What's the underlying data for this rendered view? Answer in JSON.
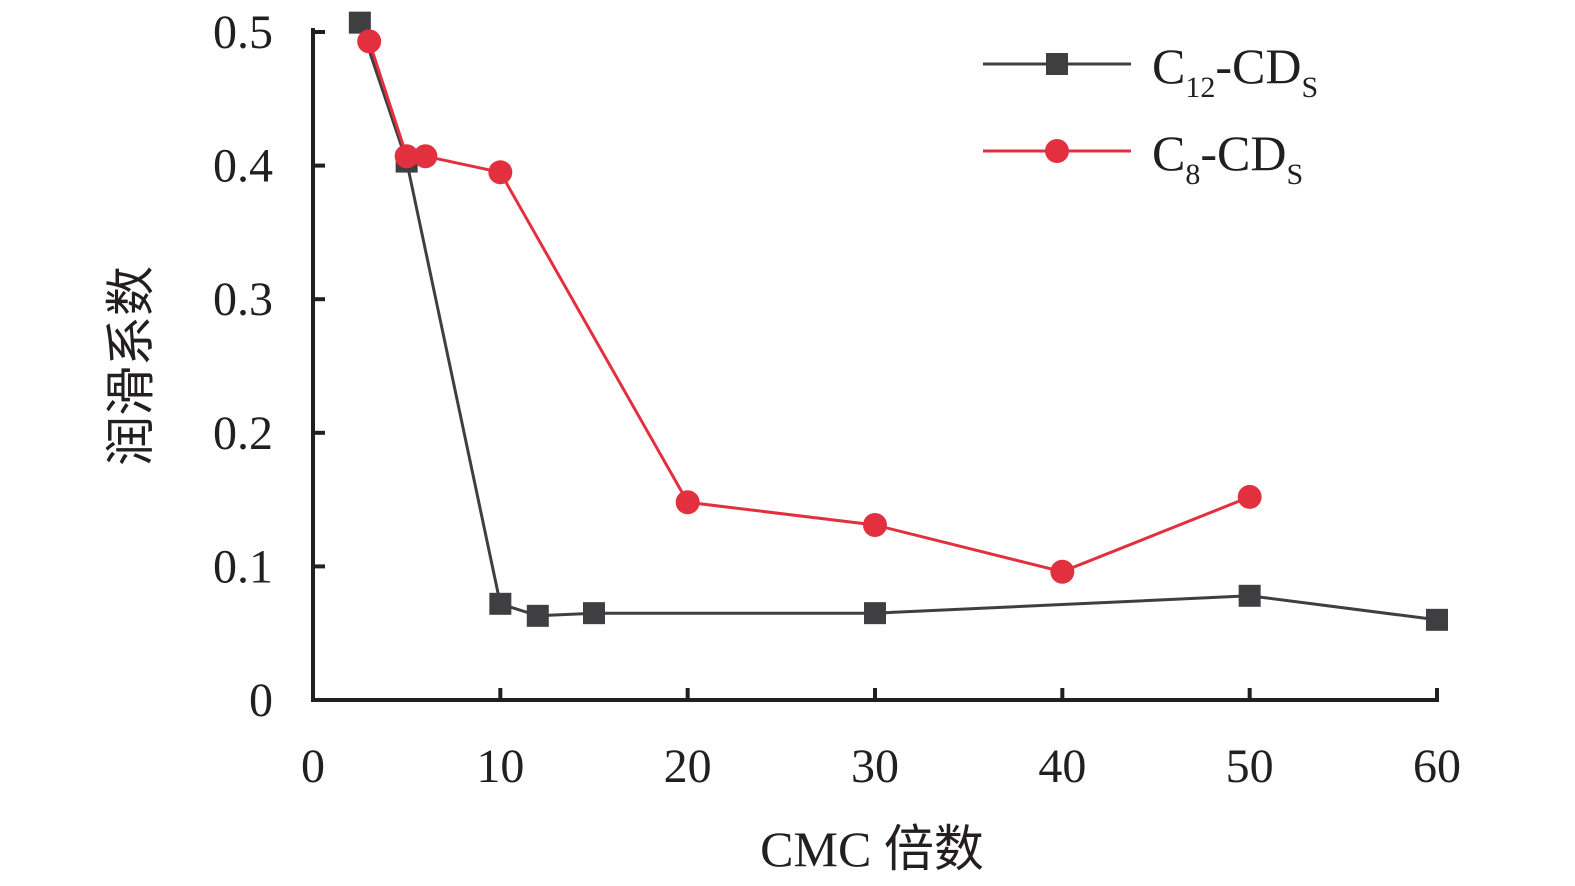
{
  "chart_data": {
    "type": "line",
    "xlabel": "CMC 倍数",
    "ylabel": "润滑系数",
    "xlim": [
      0,
      60
    ],
    "ylim": [
      0,
      0.5
    ],
    "x_ticks": [
      "0",
      "10",
      "20",
      "30",
      "40",
      "50",
      "60"
    ],
    "y_ticks": [
      "0",
      "0.1",
      "0.2",
      "0.3",
      "0.4",
      "0.5"
    ],
    "grid": false,
    "legend_position": "top-right",
    "series": [
      {
        "name": "C12-CDS",
        "name_parts": {
          "base": "C",
          "sub1": "12",
          "mid": "-CD",
          "sub2": "S"
        },
        "color": "#3f3f42",
        "marker": "square",
        "x": [
          2.5,
          5,
          10,
          12,
          15,
          30,
          50,
          60
        ],
        "y": [
          0.507,
          0.403,
          0.072,
          0.063,
          0.065,
          0.065,
          0.078,
          0.06
        ]
      },
      {
        "name": "C8-CDS",
        "name_parts": {
          "base": "C",
          "sub1": "8",
          "mid": "-CD",
          "sub2": "S"
        },
        "color": "#e2303f",
        "marker": "circle",
        "x": [
          3,
          5,
          6,
          10,
          20,
          30,
          40,
          50
        ],
        "y": [
          0.493,
          0.407,
          0.407,
          0.395,
          0.148,
          0.131,
          0.096,
          0.152
        ]
      }
    ]
  }
}
